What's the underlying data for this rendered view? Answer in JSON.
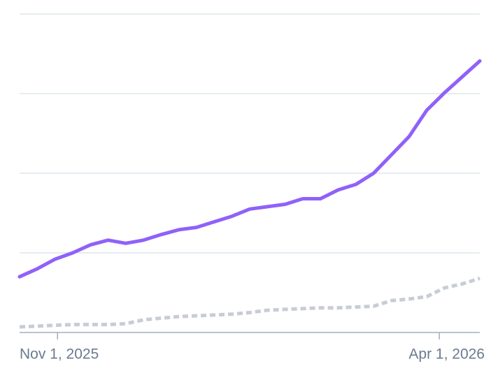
{
  "chart_data": {
    "type": "line",
    "x": [
      "2025-10-17",
      "2025-10-24",
      "2025-10-31",
      "2025-11-07",
      "2025-11-14",
      "2025-11-21",
      "2025-11-28",
      "2025-12-05",
      "2025-12-12",
      "2025-12-19",
      "2025-12-26",
      "2026-01-02",
      "2026-01-09",
      "2026-01-16",
      "2026-01-23",
      "2026-01-30",
      "2026-02-06",
      "2026-02-13",
      "2026-02-20",
      "2026-02-27",
      "2026-03-06",
      "2026-03-13",
      "2026-03-20",
      "2026-03-27",
      "2026-04-03",
      "2026-04-10",
      "2026-04-17"
    ],
    "series": [
      {
        "color": "#9061f9",
        "style": "solid",
        "values": [
          0.7,
          0.8,
          0.92,
          1.0,
          1.1,
          1.16,
          1.12,
          1.16,
          1.23,
          1.29,
          1.32,
          1.39,
          1.46,
          1.55,
          1.58,
          1.61,
          1.68,
          1.68,
          1.79,
          1.86,
          2.0,
          2.23,
          2.46,
          2.79,
          3.01,
          3.21,
          3.41
        ]
      },
      {
        "color": "#c8ccd6",
        "style": "dotted",
        "values": [
          0.07,
          0.08,
          0.09,
          0.1,
          0.1,
          0.1,
          0.11,
          0.16,
          0.18,
          0.2,
          0.21,
          0.22,
          0.23,
          0.25,
          0.28,
          0.29,
          0.3,
          0.31,
          0.31,
          0.32,
          0.33,
          0.4,
          0.42,
          0.45,
          0.56,
          0.61,
          0.68
        ]
      }
    ],
    "xlim": [
      "2025-10-17",
      "2026-04-17"
    ],
    "xticks": [
      {
        "value": "2025-11-01",
        "label": "Nov 1, 2025"
      },
      {
        "value": "2026-04-01",
        "label": "Apr 1, 2026"
      }
    ],
    "ylim": [
      0,
      4
    ],
    "yticks": [
      0,
      1,
      2,
      3,
      4
    ],
    "grid": true
  }
}
